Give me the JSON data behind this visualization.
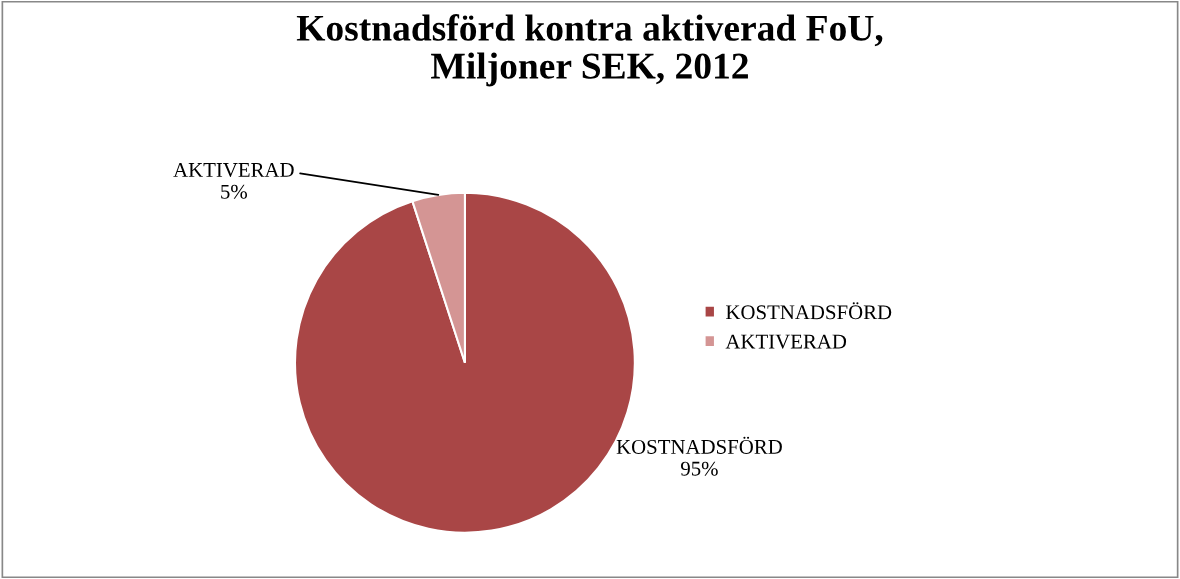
{
  "chart_data": {
    "type": "pie",
    "title": "Kostnadsförd kontra aktiverad FoU,\nMiljoner SEK, 2012",
    "categories": [
      "KOSTNADSFÖRD",
      "AKTIVERAD"
    ],
    "values": [
      95,
      5
    ],
    "value_labels": [
      "95%",
      "5%"
    ],
    "colors": [
      "#a94646",
      "#d49594"
    ],
    "legend": "right"
  }
}
